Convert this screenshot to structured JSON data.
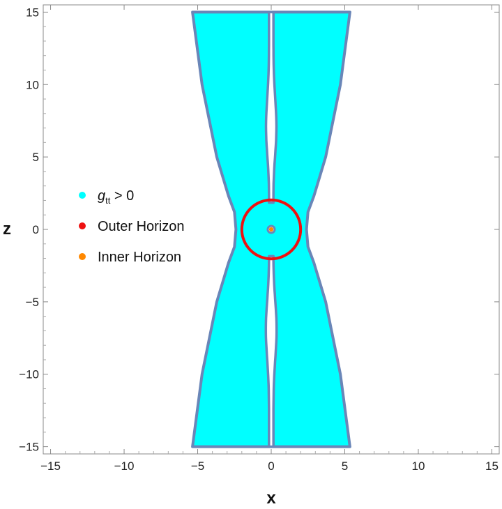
{
  "chart_data": {
    "type": "region",
    "xlabel": "x",
    "ylabel": "z",
    "xlim": [
      -15.5,
      15.5
    ],
    "ylim": [
      -15.5,
      15.5
    ],
    "xticks": [
      -15,
      -10,
      -5,
      0,
      5,
      10,
      15
    ],
    "yticks": [
      -15,
      -10,
      -5,
      0,
      5,
      10,
      15
    ],
    "tick_labels": {
      "x": [
        "−15",
        "−10",
        "−5",
        "0",
        "5",
        "10",
        "15"
      ],
      "y": [
        "−15",
        "−10",
        "−5",
        "0",
        "5",
        "10",
        "15"
      ]
    },
    "grid": false,
    "legend_position": "left",
    "legend": [
      {
        "key": "gtt",
        "label_main": "g",
        "label_sub": "tt",
        "label_rest": " > 0",
        "color": "#00ffff"
      },
      {
        "key": "outer",
        "label": "Outer Horizon",
        "color": "#ee1111"
      },
      {
        "key": "inner",
        "label": "Inner Horizon",
        "color": "#ff8800"
      }
    ],
    "region_fill": "#00ffff",
    "region_edge": "#6a86b8",
    "region_outer_boundary": [
      [
        -5.35,
        15
      ],
      [
        -4.7,
        10
      ],
      [
        -3.7,
        5
      ],
      [
        -2.9,
        2.3
      ],
      [
        -2.5,
        1.2
      ],
      [
        -2.4,
        0
      ],
      [
        -2.5,
        -1.2
      ],
      [
        -2.9,
        -2.3
      ],
      [
        -3.7,
        -5
      ],
      [
        -4.7,
        -10
      ],
      [
        -5.35,
        -15
      ]
    ],
    "central_strip_halfwidth": 0.15,
    "hole_above": {
      "y_top": 15,
      "y_bottom": 1.85,
      "max_halfwidth": 0.38,
      "bulge_center": 6.5
    },
    "hole_below": {
      "y_top": -1.85,
      "y_bottom": -15,
      "max_halfwidth": 0.38,
      "bulge_center": -6.5
    },
    "outer_horizon": {
      "center": [
        0,
        0
      ],
      "radius": 2.0,
      "color": "#ee1111"
    },
    "inner_horizon": {
      "center": [
        0,
        0
      ],
      "radius": 0.15,
      "color": "#ff8800"
    }
  }
}
